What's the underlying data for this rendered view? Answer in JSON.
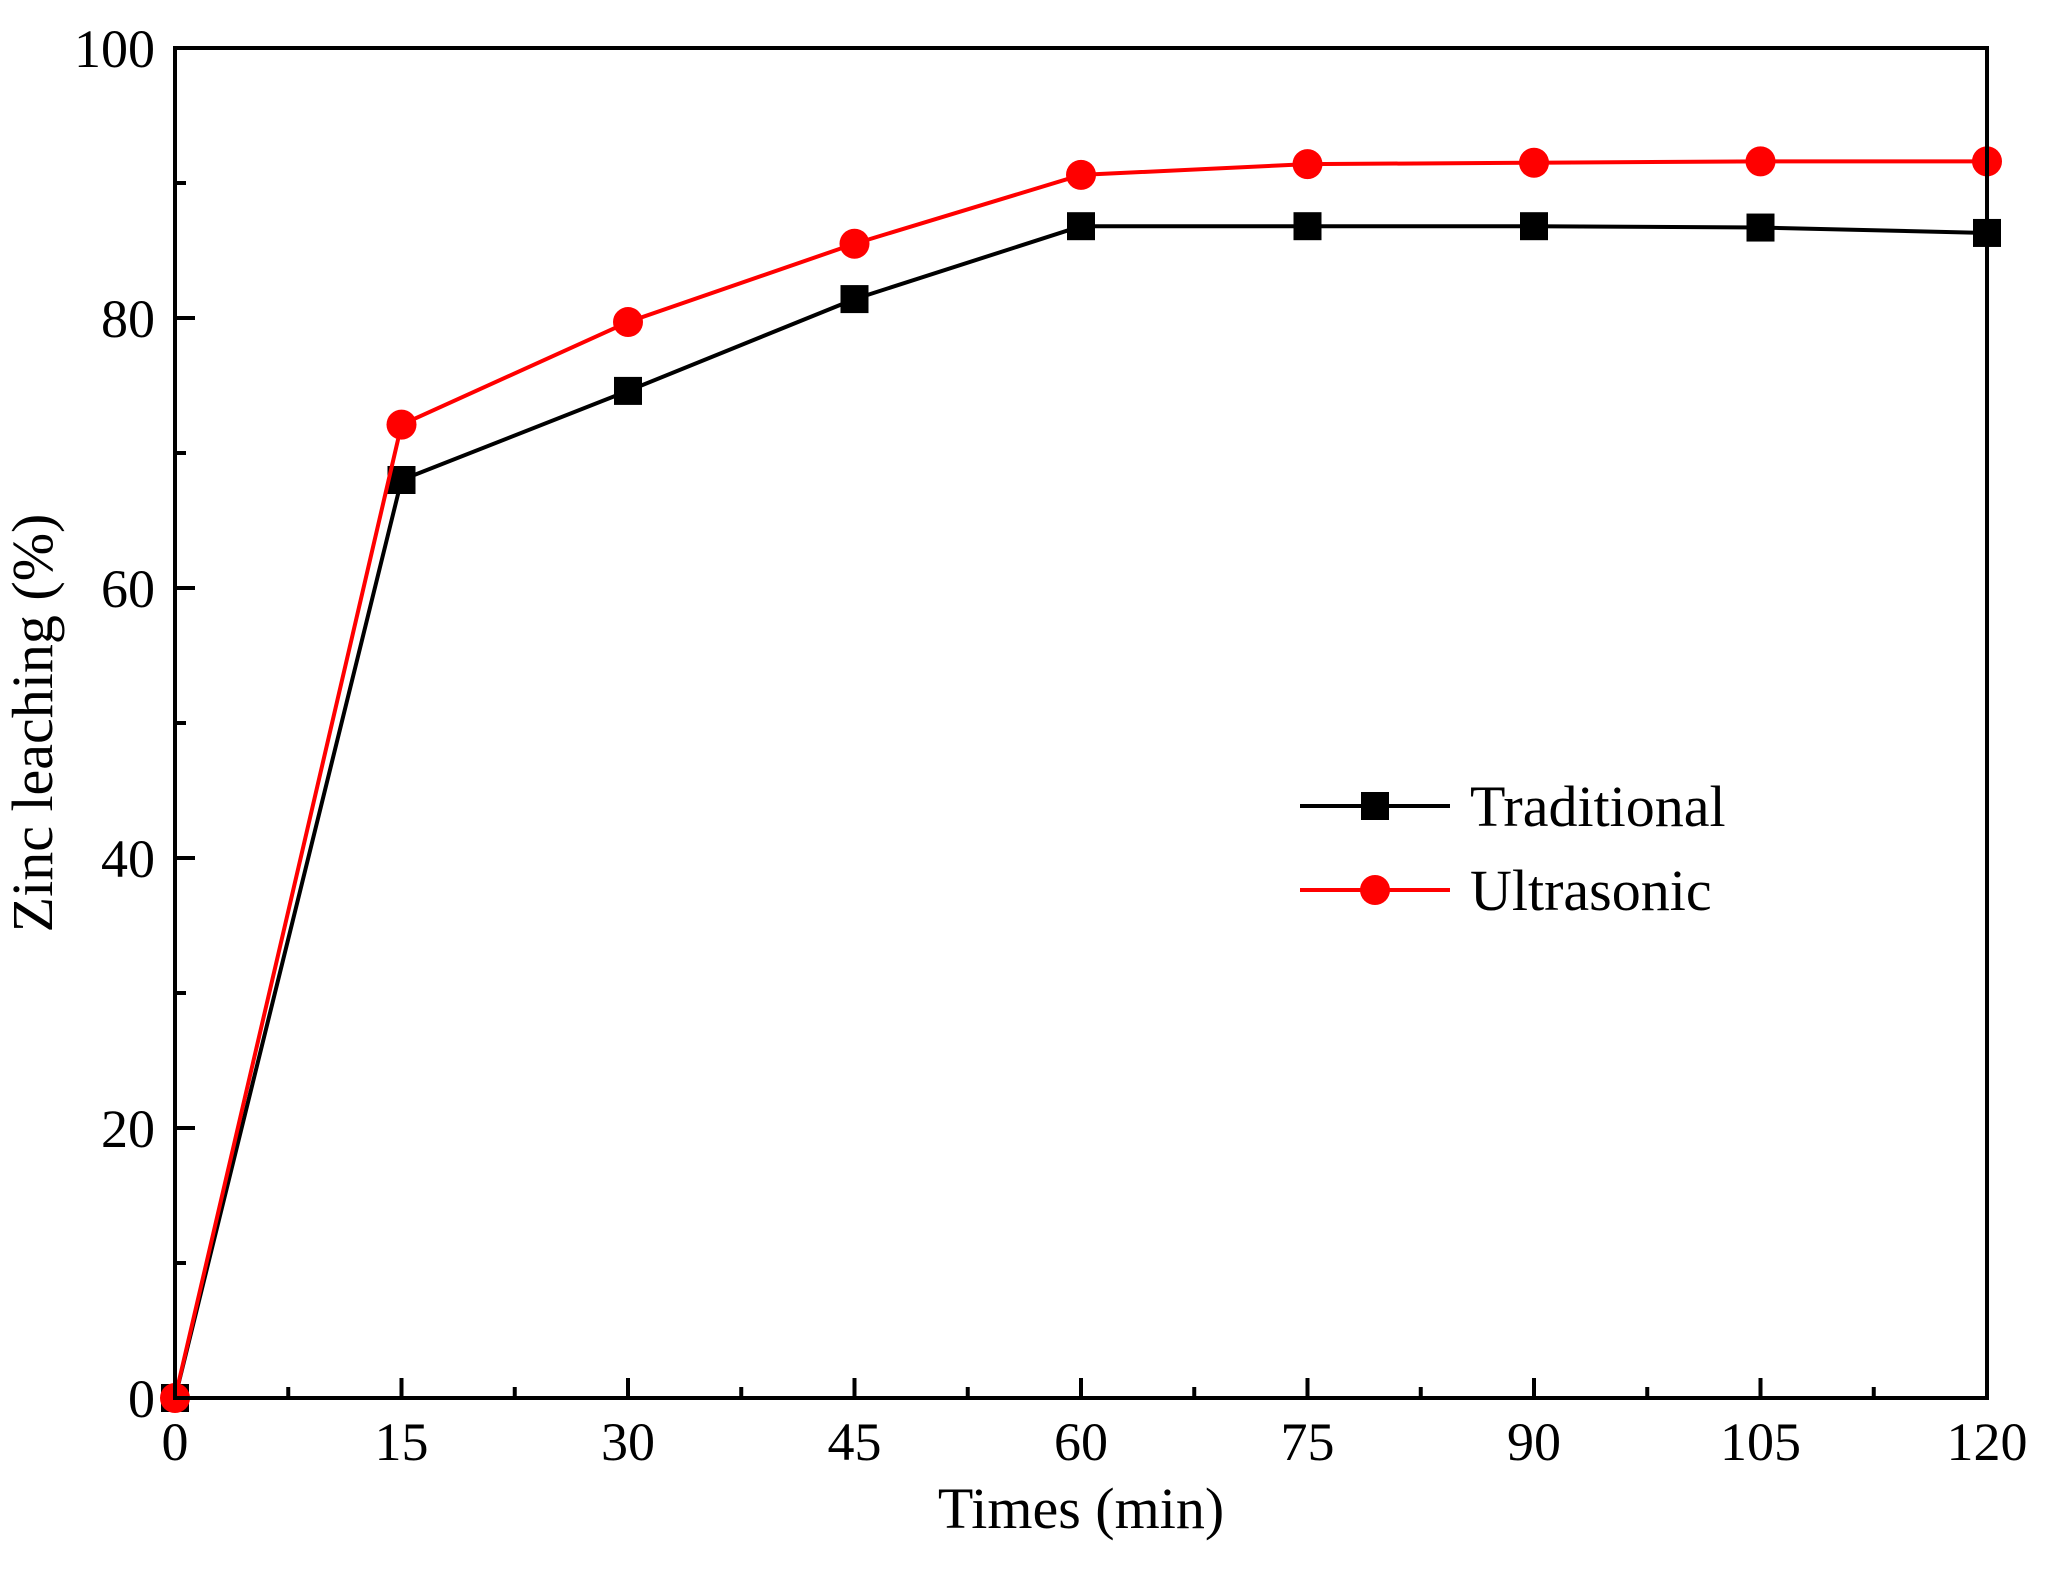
{
  "chart_data": {
    "type": "line",
    "title": "",
    "xlabel": "Times (min)",
    "ylabel": "Zinc leaching (%)",
    "xlim": [
      0,
      120
    ],
    "ylim": [
      0,
      100
    ],
    "x": [
      0,
      15,
      30,
      45,
      60,
      75,
      90,
      105,
      120
    ],
    "x_ticks": [
      0,
      15,
      30,
      45,
      60,
      75,
      90,
      105,
      120
    ],
    "x_tick_labels": [
      "0",
      "15",
      "30",
      "45",
      "60",
      "75",
      "90",
      "105",
      "120"
    ],
    "y_ticks": [
      0,
      20,
      40,
      60,
      80,
      100
    ],
    "y_tick_labels": [
      "0",
      "20",
      "40",
      "60",
      "80",
      "100"
    ],
    "grid": false,
    "legend_position": "center-right",
    "series": [
      {
        "name": "Traditional",
        "color": "#000000",
        "marker": "square",
        "values": [
          0,
          68.0,
          74.6,
          81.4,
          86.8,
          86.8,
          86.8,
          86.7,
          86.3
        ]
      },
      {
        "name": "Ultrasonic",
        "color": "#ff0000",
        "marker": "circle",
        "values": [
          0,
          72.1,
          79.7,
          85.5,
          90.6,
          91.4,
          91.5,
          91.6,
          91.6
        ]
      }
    ]
  }
}
